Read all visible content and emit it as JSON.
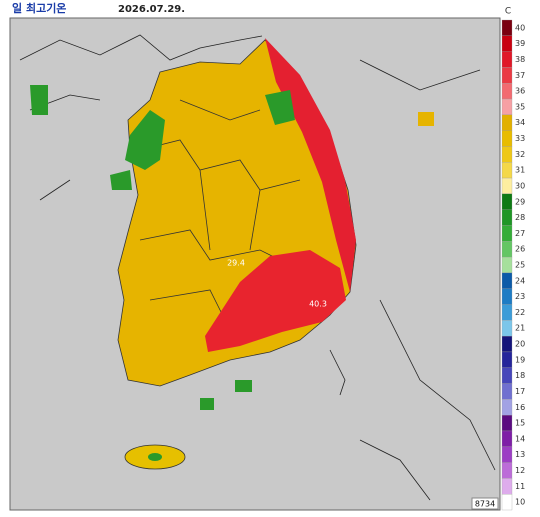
{
  "header": {
    "title": "일 최고기온",
    "date": "2026.07.29."
  },
  "legend": {
    "unit": "C",
    "ticks": [
      40,
      39,
      38,
      37,
      36,
      35,
      34,
      33,
      32,
      31,
      30,
      29,
      28,
      27,
      26,
      25,
      24,
      23,
      22,
      21,
      20,
      19,
      18,
      17,
      16,
      15,
      14,
      13,
      12,
      11,
      10
    ],
    "colors": [
      "#7a0010",
      "#c80010",
      "#e01828",
      "#ea3a44",
      "#f26a70",
      "#f6a0a4",
      "#e2b000",
      "#e8bc00",
      "#eec818",
      "#f4d848",
      "#fdeea0",
      "#0e7a14",
      "#1f9626",
      "#34ad38",
      "#64c664",
      "#a6e09c",
      "#0c5aa8",
      "#1e7cc4",
      "#3c9cd8",
      "#7cc6ea",
      "#14147a",
      "#24249a",
      "#4646ba",
      "#7070d0",
      "#a2a2e4",
      "#5a0a80",
      "#7e1ea6",
      "#9c3ec4",
      "#bc6cd8",
      "#deacec",
      "#ffffff"
    ]
  },
  "annotations": {
    "station_a": "29.4",
    "station_b": "40.3",
    "code": "8734"
  }
}
